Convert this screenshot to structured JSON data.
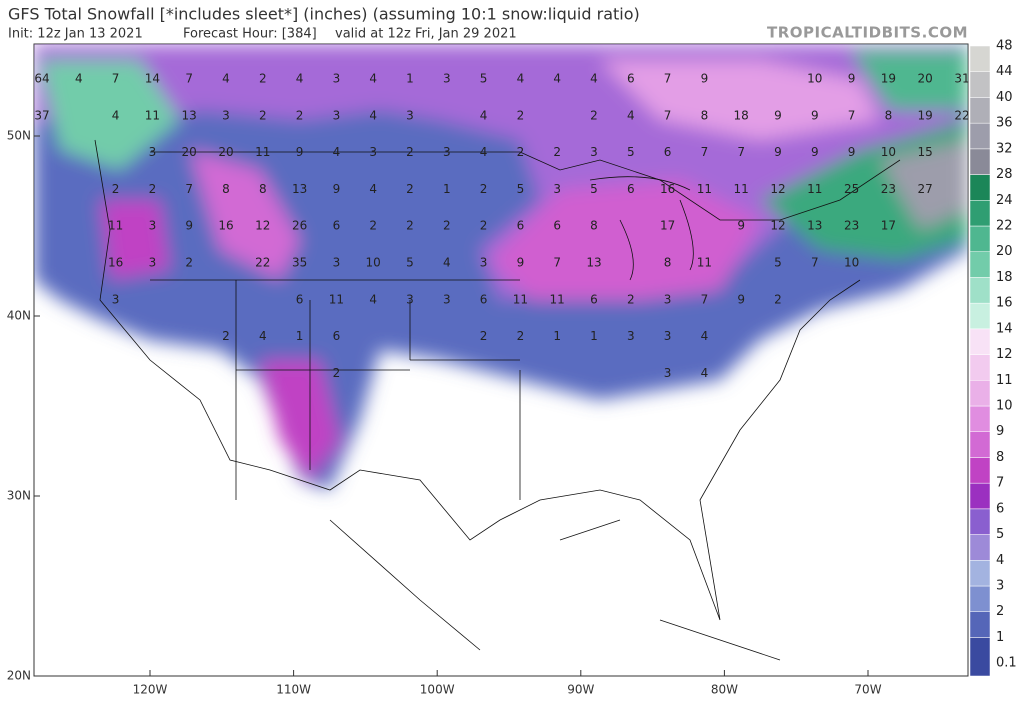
{
  "header": {
    "title": "GFS Total Snowfall [*includes sleet*] (inches) (assuming 10:1 snow:liquid ratio)",
    "init": "Init: 12z Jan 13 2021",
    "forecast_hour": "Forecast Hour: [384]",
    "valid": "valid at 12z Fri, Jan 29 2021",
    "site": "TROPICALTIDBITS.COM"
  },
  "map": {
    "lat_ticks": [
      {
        "value": 50,
        "label": "50N"
      },
      {
        "value": 40,
        "label": "40N"
      },
      {
        "value": 30,
        "label": "30N"
      },
      {
        "value": 20,
        "label": "20N"
      }
    ],
    "lon_ticks": [
      {
        "value": -120,
        "label": "120W"
      },
      {
        "value": -110,
        "label": "110W"
      },
      {
        "value": -100,
        "label": "100W"
      },
      {
        "value": -90,
        "label": "90W"
      },
      {
        "value": -80,
        "label": "80W"
      },
      {
        "value": -70,
        "label": "70W"
      }
    ],
    "labels": [
      [
        64,
        4,
        7,
        14,
        7,
        4,
        2,
        4,
        3,
        4,
        1,
        3,
        5,
        4,
        4,
        4,
        6,
        7,
        9,
        null,
        null,
        10,
        9,
        19,
        20,
        31
      ],
      [
        37,
        null,
        4,
        11,
        13,
        3,
        2,
        2,
        3,
        4,
        3,
        null,
        4,
        2,
        null,
        2,
        4,
        7,
        8,
        18,
        9,
        9,
        7,
        8,
        19,
        22
      ],
      [
        null,
        null,
        null,
        3,
        20,
        20,
        11,
        9,
        4,
        3,
        2,
        3,
        4,
        2,
        2,
        3,
        5,
        6,
        7,
        7,
        9,
        9,
        9,
        10,
        15,
        null
      ],
      [
        null,
        null,
        2,
        2,
        7,
        8,
        8,
        13,
        9,
        4,
        2,
        1,
        2,
        5,
        3,
        5,
        6,
        16,
        11,
        11,
        12,
        11,
        25,
        23,
        27,
        null
      ],
      [
        null,
        null,
        11,
        3,
        9,
        16,
        12,
        26,
        6,
        2,
        2,
        2,
        2,
        6,
        6,
        8,
        null,
        17,
        null,
        9,
        12,
        13,
        23,
        17,
        null,
        null
      ],
      [
        null,
        null,
        16,
        3,
        2,
        null,
        22,
        35,
        3,
        10,
        5,
        4,
        3,
        9,
        7,
        13,
        null,
        8,
        11,
        null,
        5,
        7,
        10,
        null,
        null,
        null
      ],
      [
        null,
        null,
        3,
        null,
        null,
        null,
        null,
        6,
        11,
        4,
        3,
        3,
        6,
        11,
        11,
        6,
        2,
        3,
        7,
        9,
        2,
        null,
        null,
        null,
        null,
        null
      ],
      [
        null,
        null,
        null,
        null,
        null,
        2,
        4,
        1,
        6,
        null,
        null,
        null,
        2,
        2,
        1,
        1,
        3,
        3,
        4,
        null,
        null,
        null,
        null,
        null,
        null,
        null
      ],
      [
        null,
        null,
        null,
        null,
        null,
        null,
        null,
        null,
        2,
        null,
        null,
        null,
        null,
        null,
        null,
        null,
        null,
        3,
        4,
        null,
        null,
        null,
        null,
        null,
        null,
        null
      ]
    ]
  },
  "colorbar": {
    "levels": [
      0.1,
      1,
      2,
      3,
      4,
      5,
      6,
      7,
      8,
      9,
      10,
      11,
      12,
      14,
      16,
      18,
      20,
      22,
      24,
      28,
      32,
      36,
      40,
      44,
      48
    ],
    "colors": [
      "#3a4aa0",
      "#5566b8",
      "#7e90d0",
      "#a3b3e0",
      "#9d8ad8",
      "#8a5fcf",
      "#9b30c0",
      "#c043c4",
      "#d26ad4",
      "#e08de0",
      "#eab0e8",
      "#f2cbef",
      "#f8e2f6",
      "#c8f0e0",
      "#9fe0c8",
      "#72ccaa",
      "#4fb790",
      "#2f9e72",
      "#1b8658",
      "#8a8a98",
      "#9d9dab",
      "#afafb7",
      "#c2c2c4",
      "#d6d6d2",
      "#ebebe6"
    ]
  }
}
